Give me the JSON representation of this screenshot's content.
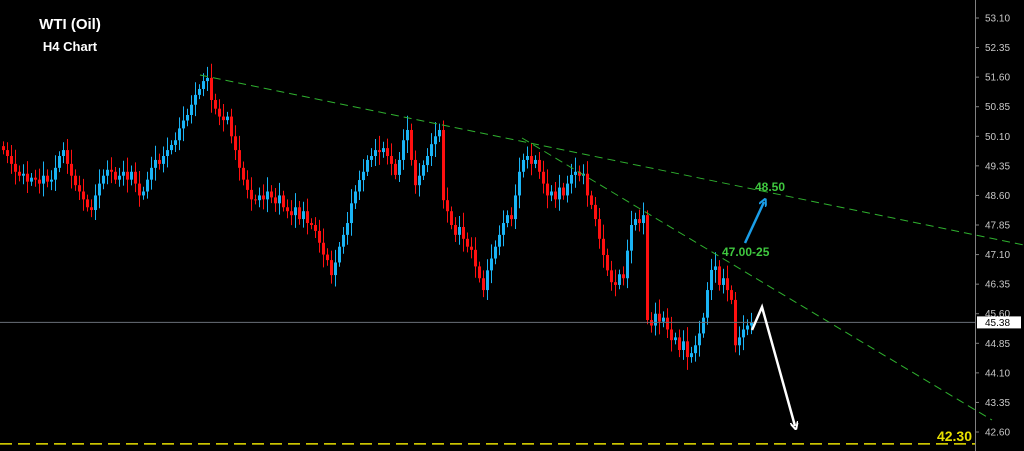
{
  "title": "WTI (Oil)",
  "subtitle": "H4 Chart",
  "chart_data": {
    "type": "candlestick",
    "yaxis_ticks": [
      "53.10",
      "52.35",
      "51.60",
      "50.85",
      "50.10",
      "49.35",
      "48.60",
      "47.85",
      "47.10",
      "46.35",
      "45.60",
      "44.85",
      "44.10",
      "43.35",
      "42.60"
    ],
    "ylim": [
      42.25,
      53.55
    ],
    "current_price": "45.38",
    "closes": [
      49.75,
      49.6,
      49.4,
      49.2,
      49.1,
      49.15,
      48.95,
      49.05,
      49.0,
      48.9,
      49.1,
      48.95,
      49.0,
      49.3,
      49.6,
      49.75,
      49.4,
      49.1,
      48.86,
      48.7,
      48.5,
      48.3,
      48.23,
      48.6,
      48.9,
      49.1,
      49.25,
      49.2,
      49.0,
      49.1,
      49.2,
      49.0,
      49.2,
      48.9,
      48.6,
      48.7,
      49.0,
      49.3,
      49.5,
      49.4,
      49.6,
      49.75,
      49.88,
      50.0,
      50.3,
      50.5,
      50.64,
      50.9,
      51.15,
      51.3,
      51.5,
      51.58,
      51.02,
      50.8,
      50.6,
      50.51,
      50.6,
      50.1,
      49.75,
      49.3,
      49.0,
      48.74,
      48.5,
      48.48,
      48.6,
      48.5,
      48.7,
      48.55,
      48.4,
      48.6,
      48.3,
      48.2,
      48.1,
      48.3,
      48.0,
      48.2,
      47.9,
      47.85,
      47.7,
      47.4,
      47.1,
      46.96,
      46.58,
      46.9,
      47.3,
      47.6,
      47.9,
      48.4,
      48.7,
      48.99,
      49.2,
      49.5,
      49.6,
      49.75,
      49.7,
      49.8,
      49.6,
      49.4,
      49.12,
      49.5,
      50.0,
      50.26,
      49.5,
      48.86,
      49.1,
      49.37,
      49.6,
      49.9,
      50.1,
      50.26,
      48.48,
      48.2,
      47.85,
      47.6,
      47.8,
      47.5,
      47.3,
      47.22,
      46.8,
      46.5,
      46.2,
      46.7,
      47.0,
      47.3,
      47.6,
      47.9,
      48.1,
      48.0,
      48.6,
      49.2,
      49.5,
      49.6,
      49.4,
      49.5,
      49.2,
      48.9,
      48.6,
      48.7,
      48.5,
      48.8,
      48.6,
      48.9,
      49.12,
      49.2,
      49.1,
      49.15,
      48.6,
      48.36,
      48.0,
      47.5,
      47.09,
      46.7,
      46.4,
      46.33,
      46.6,
      46.5,
      47.2,
      47.85,
      48.0,
      47.9,
      48.1,
      45.44,
      45.3,
      45.6,
      45.4,
      45.5,
      45.2,
      44.93,
      45.0,
      44.68,
      44.9,
      44.5,
      44.6,
      44.8,
      45.1,
      45.5,
      46.2,
      46.71,
      46.8,
      46.33,
      46.5,
      46.2,
      45.95,
      44.8,
      45.0,
      45.2,
      45.3,
      45.38
    ],
    "support_level": {
      "label": "42.30",
      "price": 42.3
    },
    "annotations": {
      "target_up": "48.50",
      "resistance": "47.00-25"
    },
    "colors": {
      "bull": "#1ab4f5",
      "bear": "#ff1010",
      "trendline": "#2fb12f",
      "support": "#e8e000",
      "label_green": "#3fc83f",
      "arrow_up": "#1a9ee8",
      "arrow_down": "#ffffff",
      "axis": "#808080"
    }
  }
}
